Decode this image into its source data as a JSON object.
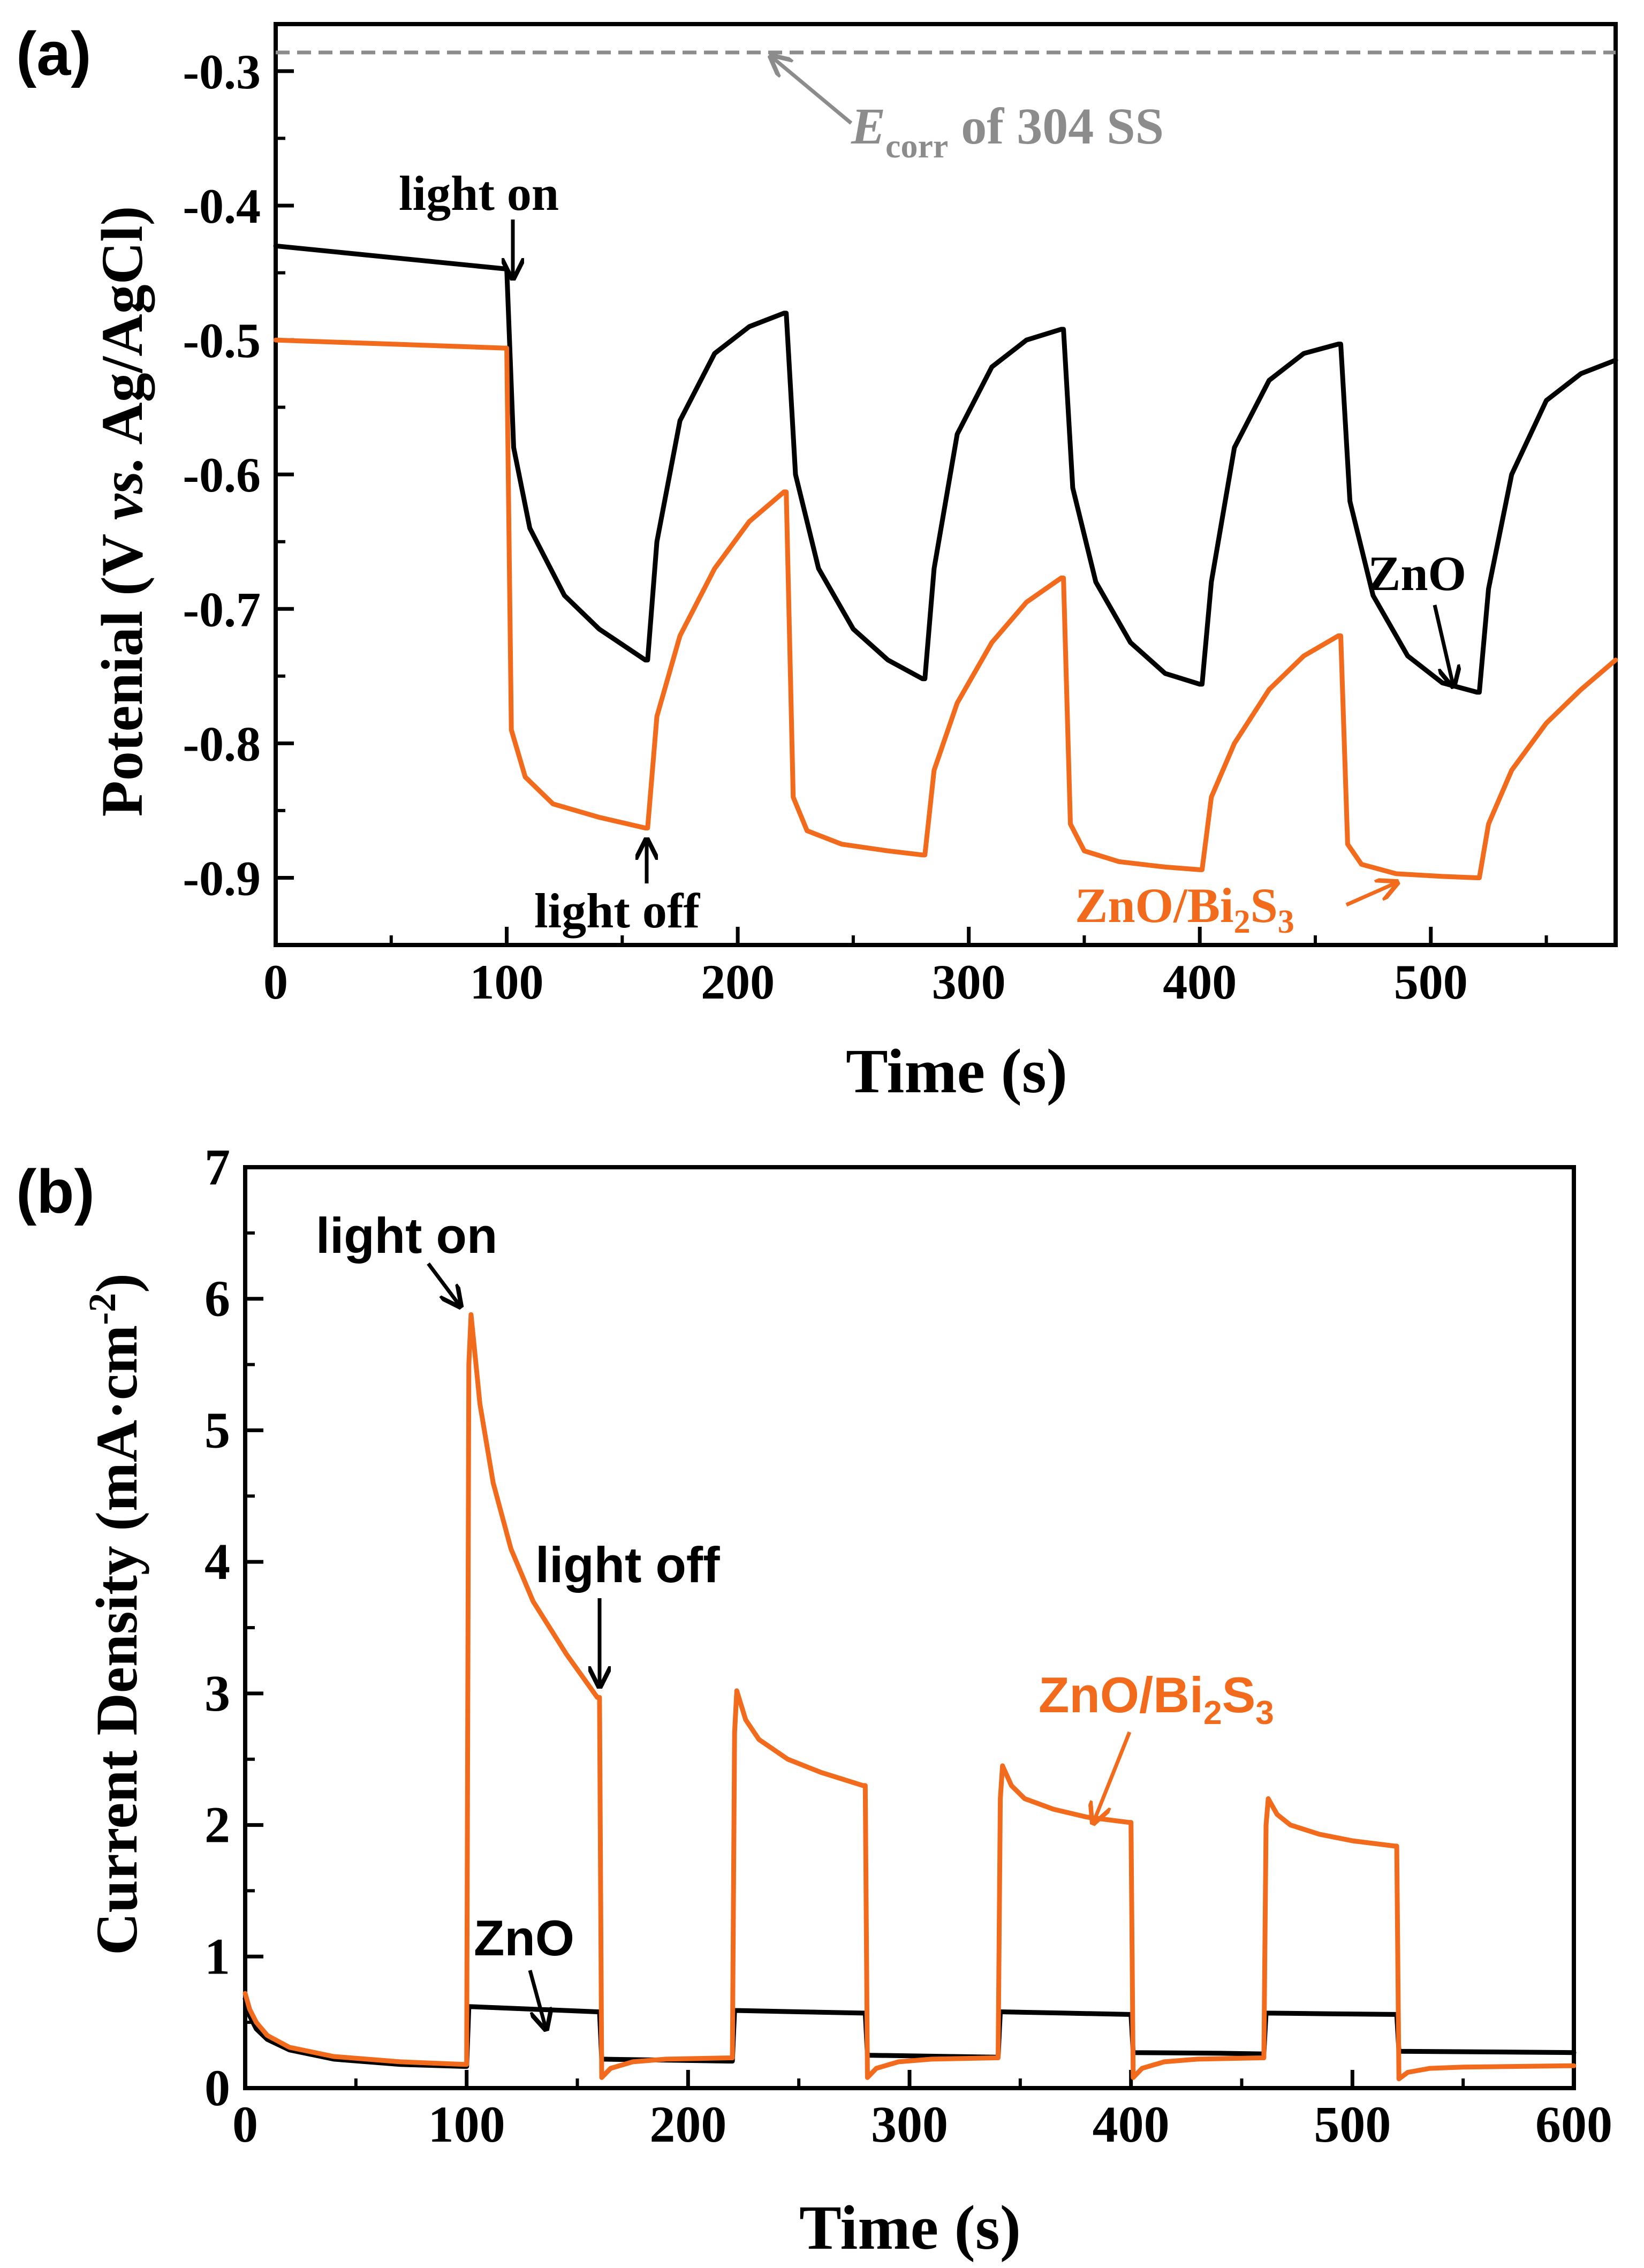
{
  "chart_data": [
    {
      "panel_label": "(a)",
      "type": "line",
      "xlabel": "Time (s)",
      "ylabel_parts": [
        "Potenial (V ",
        "vs.",
        " Ag/AgCl)"
      ],
      "xlim": [
        0,
        580
      ],
      "ylim": [
        -0.95,
        -0.265
      ],
      "xticks": [
        0,
        100,
        200,
        300,
        400,
        500
      ],
      "yticks": [
        -0.3,
        -0.4,
        -0.5,
        -0.6,
        -0.7,
        -0.8,
        -0.9
      ],
      "reference_line": {
        "y": -0.27,
        "label_parts": [
          "E",
          "corr",
          " of 304 SS"
        ],
        "color": "#8c8c8c"
      },
      "series": [
        {
          "name": "ZnO",
          "color": "#000000",
          "x": [
            0,
            99,
            100,
            103,
            110,
            125,
            140,
            160,
            161,
            165,
            175,
            190,
            205,
            220,
            221,
            225,
            235,
            250,
            265,
            280,
            281,
            285,
            295,
            310,
            325,
            340,
            341,
            345,
            355,
            370,
            385,
            400,
            401,
            405,
            415,
            430,
            445,
            460,
            461,
            465,
            475,
            490,
            505,
            520,
            521,
            525,
            535,
            550,
            565,
            580
          ],
          "values": [
            -0.43,
            -0.447,
            -0.447,
            -0.58,
            -0.64,
            -0.69,
            -0.715,
            -0.738,
            -0.738,
            -0.65,
            -0.56,
            -0.51,
            -0.49,
            -0.48,
            -0.48,
            -0.6,
            -0.67,
            -0.715,
            -0.738,
            -0.752,
            -0.752,
            -0.67,
            -0.57,
            -0.52,
            -0.5,
            -0.492,
            -0.492,
            -0.61,
            -0.68,
            -0.725,
            -0.748,
            -0.756,
            -0.756,
            -0.68,
            -0.58,
            -0.53,
            -0.51,
            -0.503,
            -0.503,
            -0.62,
            -0.69,
            -0.735,
            -0.755,
            -0.762,
            -0.762,
            -0.685,
            -0.6,
            -0.545,
            -0.525,
            -0.515
          ]
        },
        {
          "name": "ZnO/Bi2S3",
          "color": "#f26a1b",
          "x": [
            0,
            99,
            100,
            102,
            108,
            120,
            140,
            160,
            161,
            165,
            175,
            190,
            205,
            220,
            221,
            224,
            230,
            245,
            265,
            280,
            281,
            285,
            295,
            310,
            325,
            340,
            341,
            344,
            350,
            365,
            385,
            400,
            401,
            405,
            415,
            430,
            445,
            460,
            461,
            464,
            470,
            485,
            505,
            520,
            521,
            525,
            535,
            550,
            565,
            580
          ],
          "values": [
            -0.5,
            -0.506,
            -0.506,
            -0.79,
            -0.825,
            -0.845,
            -0.855,
            -0.863,
            -0.863,
            -0.78,
            -0.72,
            -0.67,
            -0.635,
            -0.613,
            -0.613,
            -0.84,
            -0.865,
            -0.875,
            -0.88,
            -0.883,
            -0.883,
            -0.82,
            -0.77,
            -0.725,
            -0.695,
            -0.677,
            -0.677,
            -0.86,
            -0.88,
            -0.888,
            -0.892,
            -0.894,
            -0.894,
            -0.84,
            -0.8,
            -0.76,
            -0.735,
            -0.72,
            -0.72,
            -0.875,
            -0.89,
            -0.897,
            -0.899,
            -0.9,
            -0.9,
            -0.86,
            -0.82,
            -0.785,
            -0.76,
            -0.738
          ]
        }
      ],
      "annotations": [
        {
          "text": "light on",
          "color": "#000000"
        },
        {
          "text": "light off",
          "color": "#000000"
        },
        {
          "text": "ZnO",
          "color": "#000000"
        },
        {
          "text_parts": [
            "ZnO/Bi",
            "2",
            "S",
            "3"
          ],
          "color": "#f26a1b"
        }
      ]
    },
    {
      "panel_label": "(b)",
      "type": "line",
      "xlabel": "Time (s)",
      "ylabel_parts": [
        "Current Density (mA·cm",
        "-2",
        ")"
      ],
      "xlim": [
        0,
        600
      ],
      "ylim": [
        0,
        7
      ],
      "xticks": [
        0,
        100,
        200,
        300,
        400,
        500,
        600
      ],
      "yticks": [
        0,
        1,
        2,
        3,
        4,
        5,
        6,
        7
      ],
      "series": [
        {
          "name": "ZnO",
          "color": "#000000",
          "x": [
            0,
            2,
            5,
            10,
            20,
            40,
            70,
            99,
            100,
            101,
            130,
            159,
            160,
            161,
            200,
            219,
            220,
            221,
            250,
            279,
            280,
            281,
            320,
            339,
            340,
            341,
            370,
            399,
            400,
            401,
            440,
            459,
            460,
            461,
            490,
            519,
            520,
            521,
            560,
            600
          ],
          "values": [
            0.68,
            0.55,
            0.45,
            0.37,
            0.29,
            0.22,
            0.18,
            0.165,
            0.165,
            0.62,
            0.6,
            0.58,
            0.58,
            0.22,
            0.21,
            0.205,
            0.205,
            0.59,
            0.58,
            0.57,
            0.57,
            0.25,
            0.24,
            0.235,
            0.235,
            0.58,
            0.57,
            0.56,
            0.56,
            0.27,
            0.265,
            0.26,
            0.26,
            0.57,
            0.565,
            0.56,
            0.56,
            0.28,
            0.275,
            0.27
          ]
        },
        {
          "name": "ZnO/Bi2S3",
          "color": "#f26a1b",
          "x": [
            0,
            2,
            5,
            10,
            20,
            40,
            70,
            99,
            100,
            101,
            102,
            106,
            112,
            120,
            130,
            145,
            159,
            160,
            161,
            165,
            175,
            190,
            219,
            220,
            221,
            222,
            226,
            232,
            245,
            260,
            279,
            280,
            281,
            285,
            295,
            310,
            339,
            340,
            341,
            342,
            346,
            352,
            365,
            380,
            399,
            400,
            401,
            405,
            415,
            430,
            459,
            460,
            461,
            462,
            466,
            472,
            485,
            500,
            519,
            520,
            521,
            525,
            535,
            550,
            600
          ],
          "values": [
            0.72,
            0.6,
            0.5,
            0.4,
            0.31,
            0.24,
            0.2,
            0.18,
            0.18,
            5.5,
            5.88,
            5.2,
            4.6,
            4.1,
            3.7,
            3.3,
            2.97,
            2.97,
            0.08,
            0.15,
            0.2,
            0.22,
            0.23,
            0.23,
            2.7,
            3.02,
            2.8,
            2.65,
            2.5,
            2.4,
            2.3,
            2.3,
            0.08,
            0.15,
            0.2,
            0.22,
            0.23,
            0.23,
            2.2,
            2.45,
            2.3,
            2.2,
            2.12,
            2.06,
            2.02,
            2.02,
            0.08,
            0.15,
            0.2,
            0.22,
            0.23,
            0.23,
            2.0,
            2.2,
            2.08,
            2.0,
            1.93,
            1.88,
            1.84,
            1.84,
            0.07,
            0.12,
            0.15,
            0.16,
            0.17
          ]
        }
      ],
      "annotations": [
        {
          "text": "light on",
          "color": "#000000"
        },
        {
          "text": "light off",
          "color": "#000000"
        },
        {
          "text": "ZnO",
          "color": "#000000"
        },
        {
          "text_parts": [
            "ZnO/Bi",
            "2",
            "S",
            "3"
          ],
          "color": "#f26a1b"
        }
      ]
    }
  ]
}
